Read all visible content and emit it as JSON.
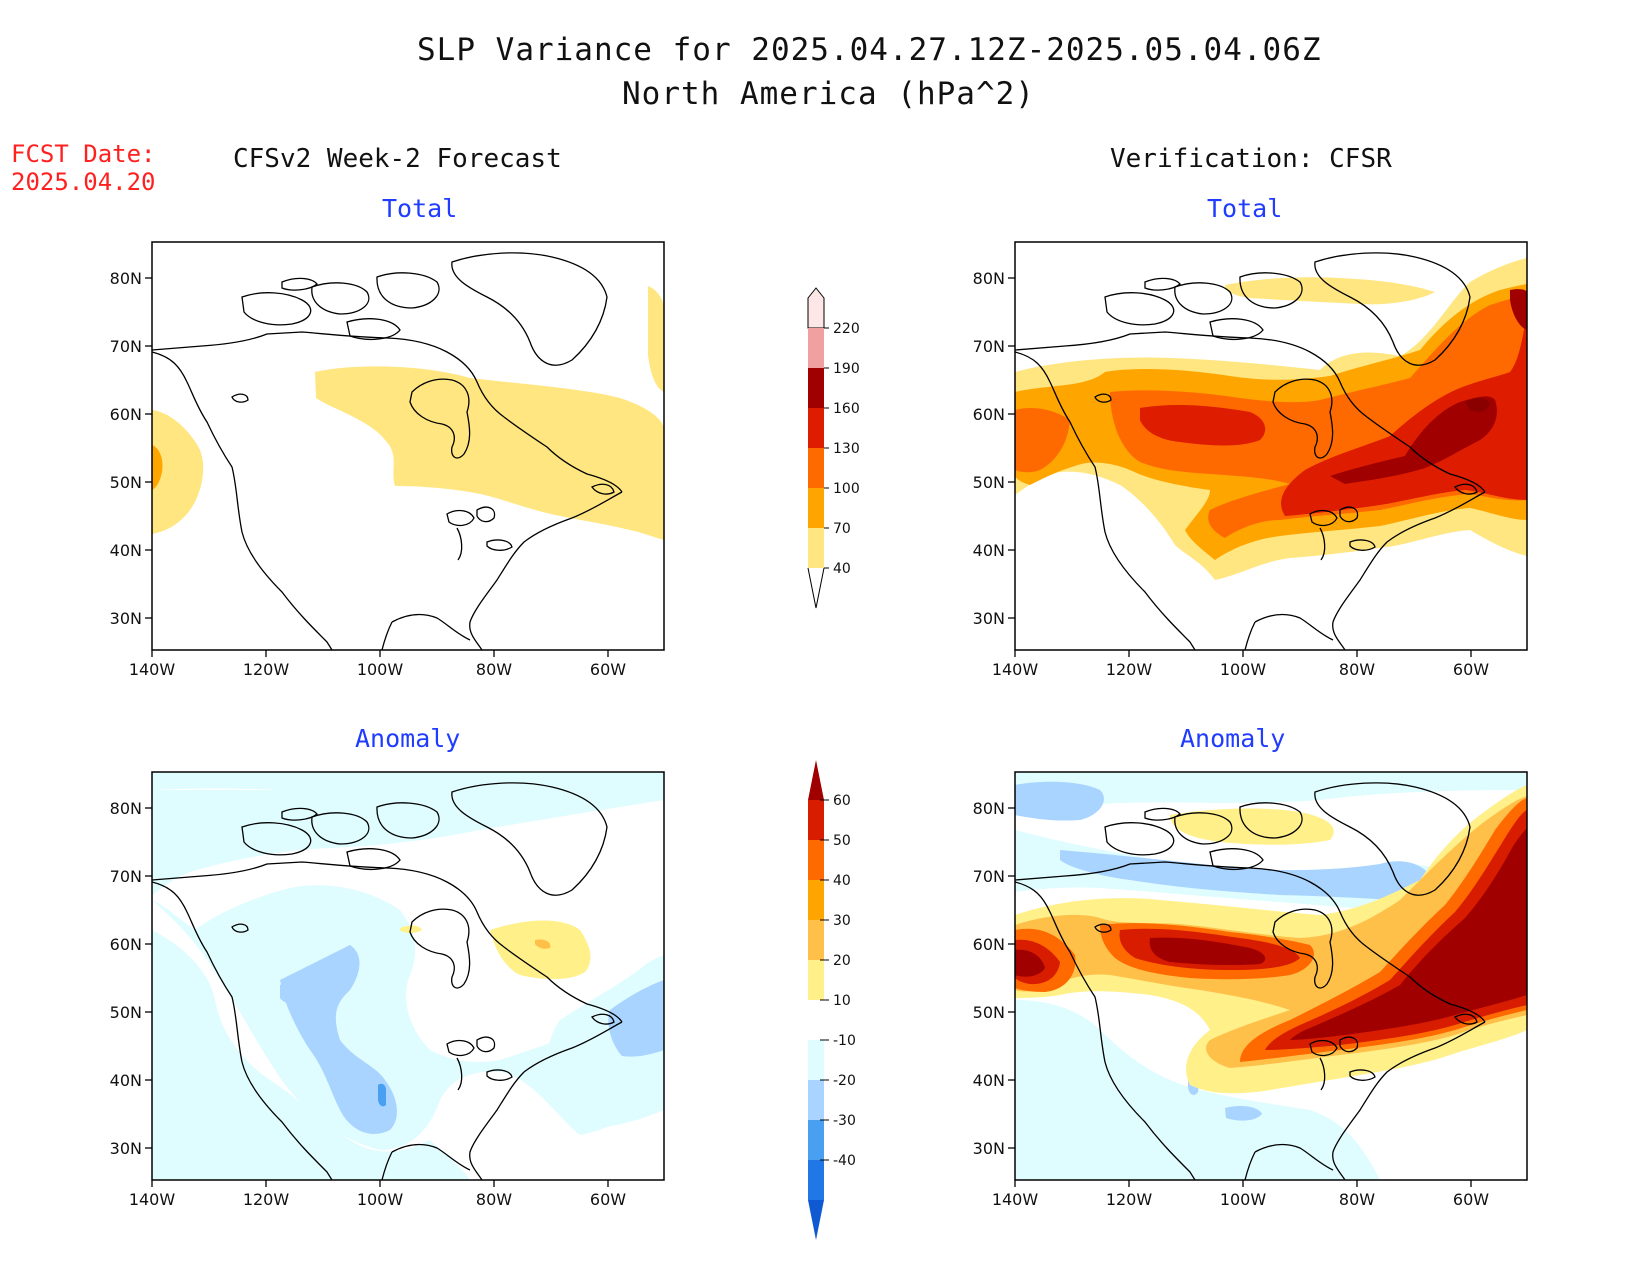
{
  "header": {
    "title_line1": "SLP Variance for 2025.04.27.12Z-2025.05.04.06Z",
    "title_line2": "North America (hPa^2)",
    "fcst_label": "FCST Date:",
    "fcst_date": "2025.04.20",
    "left_column_title": "CFSv2 Week-2 Forecast",
    "right_column_title": "Verification: CFSR"
  },
  "panel_titles": {
    "total": "Total",
    "anomaly": "Anomaly"
  },
  "axes": {
    "lat_ticks": [
      "80N",
      "70N",
      "60N",
      "50N",
      "40N",
      "30N"
    ],
    "lon_ticks": [
      "140W",
      "120W",
      "100W",
      "80W",
      "60W"
    ]
  },
  "colorbar_total": {
    "levels": [
      "220",
      "190",
      "160",
      "130",
      "100",
      "70",
      "40"
    ],
    "colors": [
      "#fde6e6",
      "#f1a0a0",
      "#a00000",
      "#dd1c00",
      "#ff6a00",
      "#ffa500",
      "#ffe680"
    ]
  },
  "colorbar_anomaly": {
    "levels": [
      "60",
      "50",
      "40",
      "30",
      "20",
      "10",
      "-10",
      "-20",
      "-30",
      "-40"
    ],
    "colors": [
      "#a00000",
      "#d81c00",
      "#ff6a00",
      "#ffa500",
      "#ffc04a",
      "#fff08a",
      "#ffffff",
      "#dffcff",
      "#a8d4ff",
      "#4aa0f0",
      "#1f78e6",
      "#0f5ad2"
    ]
  },
  "colors": {
    "text": "#111111",
    "panel_title": "#1f3cff",
    "fcst": "#ff2020"
  }
}
